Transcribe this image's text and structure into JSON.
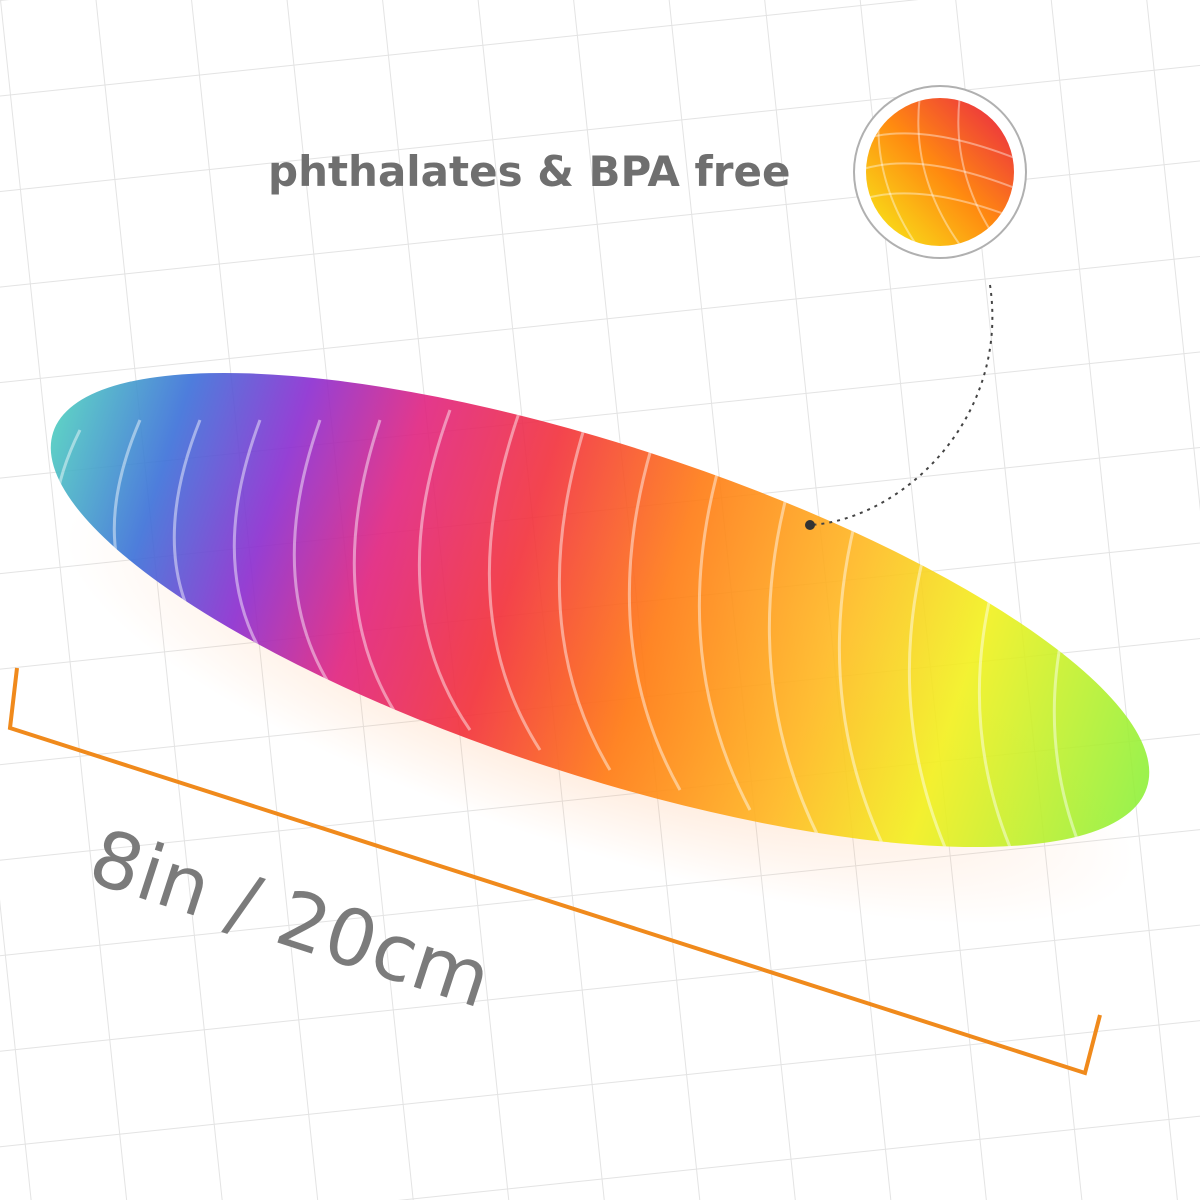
{
  "callout": {
    "text": "phthalates & BPA free"
  },
  "dimension": {
    "label": "8in / 20cm"
  }
}
